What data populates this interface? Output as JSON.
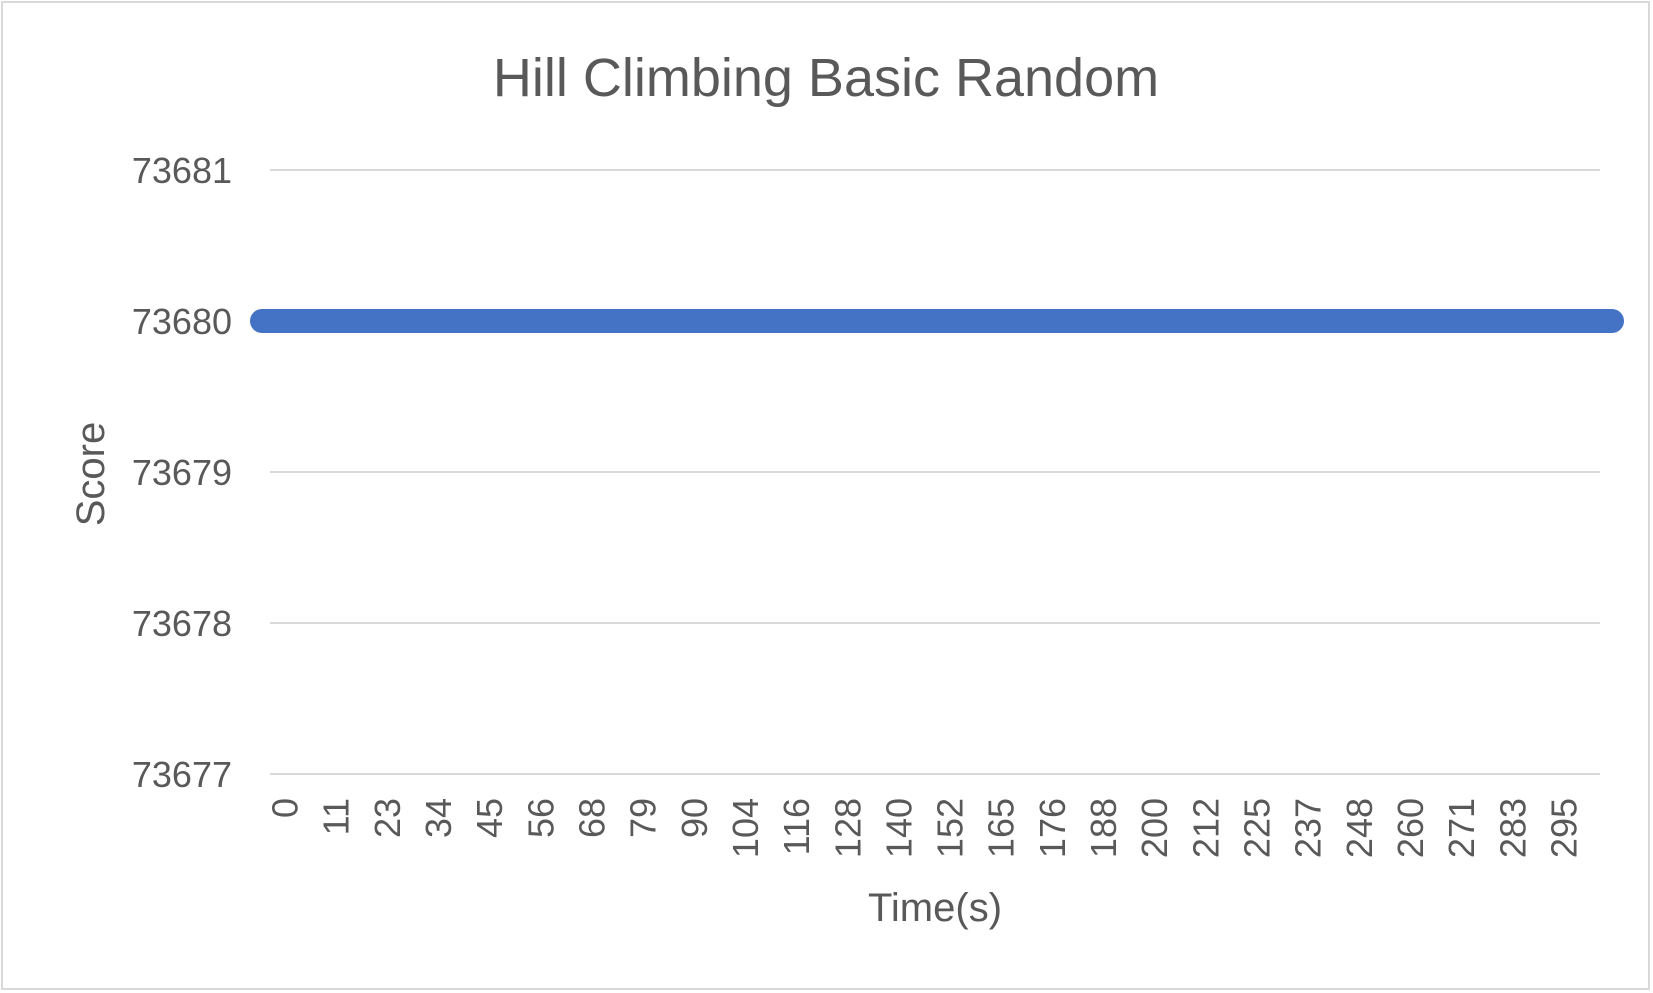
{
  "chart_data": {
    "type": "line",
    "title": "Hill Climbing Basic Random",
    "xlabel": "Time(s)",
    "ylabel": "Score",
    "ylim": [
      73677,
      73681
    ],
    "yticks": [
      "73681",
      "73680",
      "73679",
      "73678",
      "73677"
    ],
    "grid": true,
    "legend": "none",
    "categories": [
      "0",
      "11",
      "23",
      "34",
      "45",
      "56",
      "68",
      "79",
      "90",
      "104",
      "116",
      "128",
      "140",
      "152",
      "165",
      "176",
      "188",
      "200",
      "212",
      "225",
      "237",
      "248",
      "260",
      "271",
      "283",
      "295"
    ],
    "series": [
      {
        "color": "#4472c4",
        "values": [
          73680,
          73680,
          73680,
          73680,
          73680,
          73680,
          73680,
          73680,
          73680,
          73680,
          73680,
          73680,
          73680,
          73680,
          73680,
          73680,
          73680,
          73680,
          73680,
          73680,
          73680,
          73680,
          73680,
          73680,
          73680,
          73680
        ]
      }
    ]
  }
}
